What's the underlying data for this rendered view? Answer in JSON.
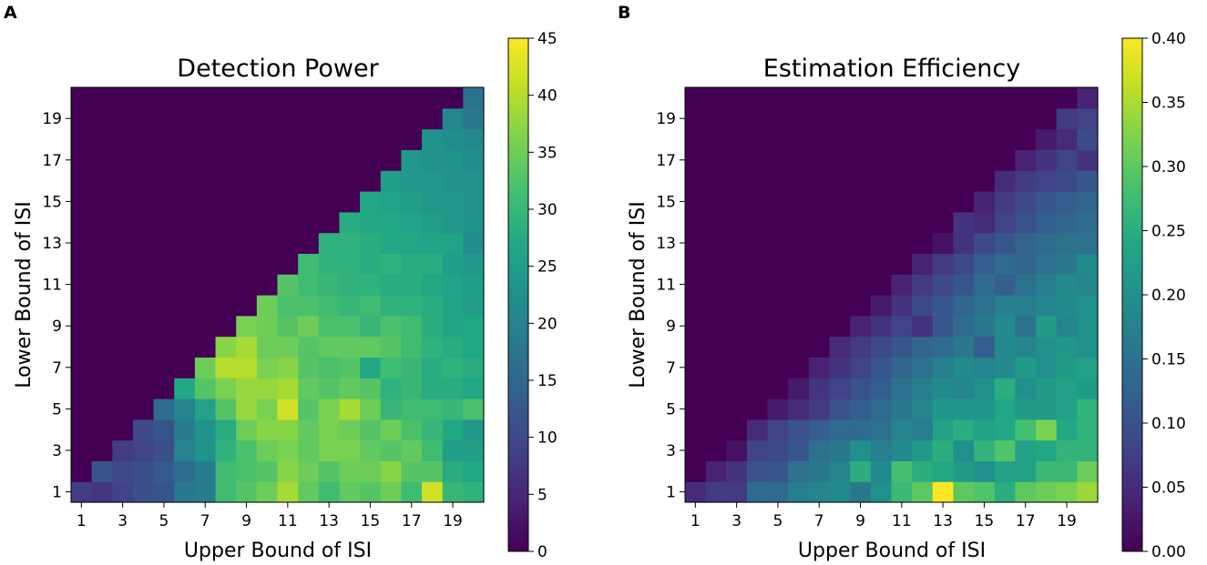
{
  "chart_data": [
    {
      "type": "heatmap",
      "panel_label": "A",
      "title": "Detection Power",
      "xlabel": "Upper Bound of ISI",
      "ylabel": "Lower Bound of ISI",
      "x": [
        1,
        2,
        3,
        4,
        5,
        6,
        7,
        8,
        9,
        10,
        11,
        12,
        13,
        14,
        15,
        16,
        17,
        18,
        19,
        20
      ],
      "y": [
        1,
        2,
        3,
        4,
        5,
        6,
        7,
        8,
        9,
        10,
        11,
        12,
        13,
        14,
        15,
        16,
        17,
        18,
        19,
        20
      ],
      "xticks": [
        "1",
        "3",
        "5",
        "7",
        "9",
        "11",
        "13",
        "15",
        "17",
        "19"
      ],
      "yticks": [
        "1",
        "3",
        "5",
        "7",
        "9",
        "11",
        "13",
        "15",
        "17",
        "19"
      ],
      "colormap": "viridis",
      "vmin": 0,
      "vmax": 45,
      "colorbar_ticks": [
        "0",
        "5",
        "10",
        "15",
        "20",
        "25",
        "30",
        "35",
        "40",
        "45"
      ],
      "note": "z[i][j] = value at Lower Bound y[i], Upper Bound x[j]; cells with Upper < Lower are 0",
      "z": [
        [
          8,
          7,
          9,
          11,
          12,
          18,
          19,
          31,
          33,
          35,
          39,
          34,
          31,
          34,
          33,
          35,
          31,
          42,
          30,
          29
        ],
        [
          0,
          12,
          10,
          11,
          13,
          16,
          19,
          31,
          32,
          33,
          37,
          35,
          33,
          35,
          35,
          37,
          33,
          33,
          28,
          27
        ],
        [
          0,
          0,
          8,
          9,
          11,
          20,
          23,
          29,
          32,
          35,
          36,
          34,
          36,
          36,
          34,
          33,
          34,
          31,
          25,
          25
        ],
        [
          0,
          0,
          0,
          10,
          12,
          19,
          23,
          28,
          35,
          37,
          37,
          34,
          36,
          35,
          33,
          35,
          32,
          30,
          27,
          24
        ],
        [
          0,
          0,
          0,
          0,
          16,
          20,
          26,
          33,
          38,
          36,
          42,
          33,
          36,
          39,
          35,
          30,
          31,
          31,
          30,
          32
        ],
        [
          0,
          0,
          0,
          0,
          0,
          27,
          33,
          36,
          38,
          38,
          39,
          34,
          33,
          34,
          33,
          29,
          30,
          28,
          28,
          27
        ],
        [
          0,
          0,
          0,
          0,
          0,
          0,
          35,
          40,
          40,
          36,
          37,
          33,
          32,
          33,
          27,
          31,
          30,
          28,
          29,
          28
        ],
        [
          0,
          0,
          0,
          0,
          0,
          0,
          0,
          37,
          39,
          35,
          35,
          33,
          34,
          34,
          34,
          33,
          31,
          29,
          28,
          27
        ],
        [
          0,
          0,
          0,
          0,
          0,
          0,
          0,
          0,
          36,
          35,
          33,
          35,
          32,
          32,
          30,
          32,
          31,
          28,
          26,
          27
        ],
        [
          0,
          0,
          0,
          0,
          0,
          0,
          0,
          0,
          0,
          35,
          32,
          32,
          31,
          30,
          31,
          29,
          29,
          28,
          26,
          25
        ],
        [
          0,
          0,
          0,
          0,
          0,
          0,
          0,
          0,
          0,
          0,
          33,
          31,
          30,
          29,
          29,
          28,
          28,
          27,
          26,
          25
        ],
        [
          0,
          0,
          0,
          0,
          0,
          0,
          0,
          0,
          0,
          0,
          0,
          31,
          29,
          29,
          28,
          29,
          28,
          28,
          25,
          24
        ],
        [
          0,
          0,
          0,
          0,
          0,
          0,
          0,
          0,
          0,
          0,
          0,
          0,
          29,
          29,
          28,
          27,
          27,
          26,
          26,
          22
        ],
        [
          0,
          0,
          0,
          0,
          0,
          0,
          0,
          0,
          0,
          0,
          0,
          0,
          0,
          28,
          27,
          27,
          26,
          25,
          24,
          23
        ],
        [
          0,
          0,
          0,
          0,
          0,
          0,
          0,
          0,
          0,
          0,
          0,
          0,
          0,
          0,
          27,
          26,
          25,
          24,
          24,
          23
        ],
        [
          0,
          0,
          0,
          0,
          0,
          0,
          0,
          0,
          0,
          0,
          0,
          0,
          0,
          0,
          0,
          25,
          24,
          24,
          23,
          23
        ],
        [
          0,
          0,
          0,
          0,
          0,
          0,
          0,
          0,
          0,
          0,
          0,
          0,
          0,
          0,
          0,
          0,
          24,
          23,
          23,
          22
        ],
        [
          0,
          0,
          0,
          0,
          0,
          0,
          0,
          0,
          0,
          0,
          0,
          0,
          0,
          0,
          0,
          0,
          0,
          23,
          22,
          21
        ],
        [
          0,
          0,
          0,
          0,
          0,
          0,
          0,
          0,
          0,
          0,
          0,
          0,
          0,
          0,
          0,
          0,
          0,
          0,
          21,
          18
        ],
        [
          0,
          0,
          0,
          0,
          0,
          0,
          0,
          0,
          0,
          0,
          0,
          0,
          0,
          0,
          0,
          0,
          0,
          0,
          0,
          17
        ]
      ]
    },
    {
      "type": "heatmap",
      "panel_label": "B",
      "title": "Estimation Efficiency",
      "xlabel": "Upper Bound of ISI",
      "ylabel": "Lower Bound of ISI",
      "x": [
        1,
        2,
        3,
        4,
        5,
        6,
        7,
        8,
        9,
        10,
        11,
        12,
        13,
        14,
        15,
        16,
        17,
        18,
        19,
        20
      ],
      "y": [
        1,
        2,
        3,
        4,
        5,
        6,
        7,
        8,
        9,
        10,
        11,
        12,
        13,
        14,
        15,
        16,
        17,
        18,
        19,
        20
      ],
      "xticks": [
        "1",
        "3",
        "5",
        "7",
        "9",
        "11",
        "13",
        "15",
        "17",
        "19"
      ],
      "yticks": [
        "1",
        "3",
        "5",
        "7",
        "9",
        "11",
        "13",
        "15",
        "17",
        "19"
      ],
      "colormap": "viridis",
      "vmin": 0.0,
      "vmax": 0.4,
      "colorbar_ticks": [
        "0.00",
        "0.05",
        "0.10",
        "0.15",
        "0.20",
        "0.25",
        "0.30",
        "0.35",
        "0.40"
      ],
      "note": "z[i][j] = value at Lower Bound y[i], Upper Bound x[j]; cells with Upper < Lower are 0",
      "z": [
        [
          0.05,
          0.07,
          0.07,
          0.14,
          0.14,
          0.17,
          0.18,
          0.19,
          0.16,
          0.2,
          0.27,
          0.3,
          0.4,
          0.3,
          0.29,
          0.25,
          0.3,
          0.31,
          0.32,
          0.34
        ],
        [
          0.0,
          0.04,
          0.06,
          0.1,
          0.11,
          0.15,
          0.16,
          0.18,
          0.25,
          0.19,
          0.28,
          0.25,
          0.24,
          0.22,
          0.2,
          0.23,
          0.23,
          0.27,
          0.27,
          0.31
        ],
        [
          0.0,
          0.0,
          0.02,
          0.08,
          0.09,
          0.11,
          0.15,
          0.16,
          0.2,
          0.17,
          0.19,
          0.22,
          0.25,
          0.2,
          0.26,
          0.29,
          0.23,
          0.24,
          0.26,
          0.26
        ],
        [
          0.0,
          0.0,
          0.0,
          0.05,
          0.08,
          0.1,
          0.12,
          0.14,
          0.14,
          0.15,
          0.18,
          0.17,
          0.23,
          0.25,
          0.23,
          0.24,
          0.28,
          0.32,
          0.24,
          0.26
        ],
        [
          0.0,
          0.0,
          0.0,
          0.0,
          0.03,
          0.05,
          0.07,
          0.1,
          0.12,
          0.14,
          0.16,
          0.18,
          0.21,
          0.21,
          0.21,
          0.24,
          0.22,
          0.22,
          0.23,
          0.26
        ],
        [
          0.0,
          0.0,
          0.0,
          0.0,
          0.0,
          0.03,
          0.06,
          0.08,
          0.1,
          0.12,
          0.15,
          0.17,
          0.19,
          0.18,
          0.2,
          0.25,
          0.2,
          0.22,
          0.23,
          0.22
        ],
        [
          0.0,
          0.0,
          0.0,
          0.0,
          0.0,
          0.0,
          0.04,
          0.06,
          0.08,
          0.11,
          0.13,
          0.15,
          0.17,
          0.19,
          0.18,
          0.19,
          0.22,
          0.2,
          0.22,
          0.23
        ],
        [
          0.0,
          0.0,
          0.0,
          0.0,
          0.0,
          0.0,
          0.0,
          0.05,
          0.07,
          0.09,
          0.11,
          0.13,
          0.14,
          0.16,
          0.12,
          0.19,
          0.18,
          0.2,
          0.21,
          0.2
        ],
        [
          0.0,
          0.0,
          0.0,
          0.0,
          0.0,
          0.0,
          0.0,
          0.0,
          0.04,
          0.06,
          0.08,
          0.06,
          0.11,
          0.14,
          0.16,
          0.19,
          0.15,
          0.22,
          0.18,
          0.2
        ],
        [
          0.0,
          0.0,
          0.0,
          0.0,
          0.0,
          0.0,
          0.0,
          0.0,
          0.0,
          0.03,
          0.06,
          0.09,
          0.11,
          0.13,
          0.15,
          0.17,
          0.17,
          0.18,
          0.19,
          0.2
        ],
        [
          0.0,
          0.0,
          0.0,
          0.0,
          0.0,
          0.0,
          0.0,
          0.0,
          0.0,
          0.0,
          0.04,
          0.07,
          0.09,
          0.11,
          0.14,
          0.12,
          0.15,
          0.17,
          0.19,
          0.18
        ],
        [
          0.0,
          0.0,
          0.0,
          0.0,
          0.0,
          0.0,
          0.0,
          0.0,
          0.0,
          0.0,
          0.0,
          0.04,
          0.07,
          0.09,
          0.12,
          0.14,
          0.13,
          0.15,
          0.16,
          0.19
        ],
        [
          0.0,
          0.0,
          0.0,
          0.0,
          0.0,
          0.0,
          0.0,
          0.0,
          0.0,
          0.0,
          0.0,
          0.0,
          0.02,
          0.06,
          0.09,
          0.11,
          0.13,
          0.14,
          0.15,
          0.15
        ],
        [
          0.0,
          0.0,
          0.0,
          0.0,
          0.0,
          0.0,
          0.0,
          0.0,
          0.0,
          0.0,
          0.0,
          0.0,
          0.0,
          0.06,
          0.05,
          0.08,
          0.1,
          0.12,
          0.13,
          0.14
        ],
        [
          0.0,
          0.0,
          0.0,
          0.0,
          0.0,
          0.0,
          0.0,
          0.0,
          0.0,
          0.0,
          0.0,
          0.0,
          0.0,
          0.0,
          0.04,
          0.07,
          0.09,
          0.11,
          0.12,
          0.13
        ],
        [
          0.0,
          0.0,
          0.0,
          0.0,
          0.0,
          0.0,
          0.0,
          0.0,
          0.0,
          0.0,
          0.0,
          0.0,
          0.0,
          0.0,
          0.0,
          0.05,
          0.07,
          0.08,
          0.09,
          0.11
        ],
        [
          0.0,
          0.0,
          0.0,
          0.0,
          0.0,
          0.0,
          0.0,
          0.0,
          0.0,
          0.0,
          0.0,
          0.0,
          0.0,
          0.0,
          0.0,
          0.0,
          0.04,
          0.06,
          0.08,
          0.06
        ],
        [
          0.0,
          0.0,
          0.0,
          0.0,
          0.0,
          0.0,
          0.0,
          0.0,
          0.0,
          0.0,
          0.0,
          0.0,
          0.0,
          0.0,
          0.0,
          0.0,
          0.0,
          0.03,
          0.05,
          0.09
        ],
        [
          0.0,
          0.0,
          0.0,
          0.0,
          0.0,
          0.0,
          0.0,
          0.0,
          0.0,
          0.0,
          0.0,
          0.0,
          0.0,
          0.0,
          0.0,
          0.0,
          0.0,
          0.0,
          0.07,
          0.08
        ],
        [
          0.0,
          0.0,
          0.0,
          0.0,
          0.0,
          0.0,
          0.0,
          0.0,
          0.0,
          0.0,
          0.0,
          0.0,
          0.0,
          0.0,
          0.0,
          0.0,
          0.0,
          0.0,
          0.0,
          0.04
        ]
      ]
    }
  ]
}
